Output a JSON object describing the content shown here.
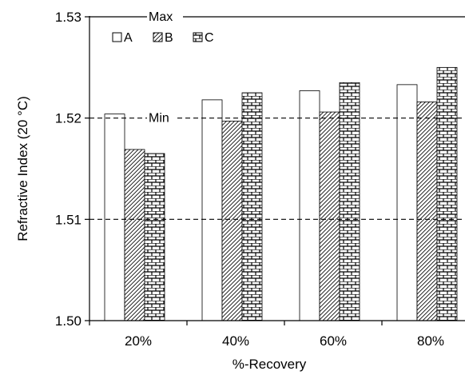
{
  "chart_data": {
    "type": "bar",
    "categories": [
      "20%",
      "40%",
      "60%",
      "80%"
    ],
    "series": [
      {
        "name": "A",
        "values": [
          1.5204,
          1.5218,
          1.5227,
          1.5233
        ],
        "pattern": "none"
      },
      {
        "name": "B",
        "values": [
          1.5169,
          1.5197,
          1.5206,
          1.5216
        ],
        "pattern": "diagonal-hatch"
      },
      {
        "name": "C",
        "values": [
          1.5165,
          1.5225,
          1.5235,
          1.525
        ],
        "pattern": "brick"
      }
    ],
    "title": "",
    "xlabel": "%-Recovery",
    "ylabel": "Refractive Index (20 °C)",
    "ylim": [
      1.5,
      1.53
    ],
    "yticks": [
      "1.50",
      "1.51",
      "1.52",
      "1.53"
    ],
    "reference_lines": [
      {
        "label": "Max",
        "value": 1.53,
        "style": "solid"
      },
      {
        "label": "Min",
        "value": 1.52,
        "style": "dashed"
      },
      {
        "value": 1.51,
        "style": "dashed"
      }
    ],
    "grid": false,
    "legend_position": "top-left",
    "colors": {
      "bar_fill": "#ffffff",
      "bar_stroke": "#000000",
      "pattern_stroke": "#000000"
    }
  }
}
